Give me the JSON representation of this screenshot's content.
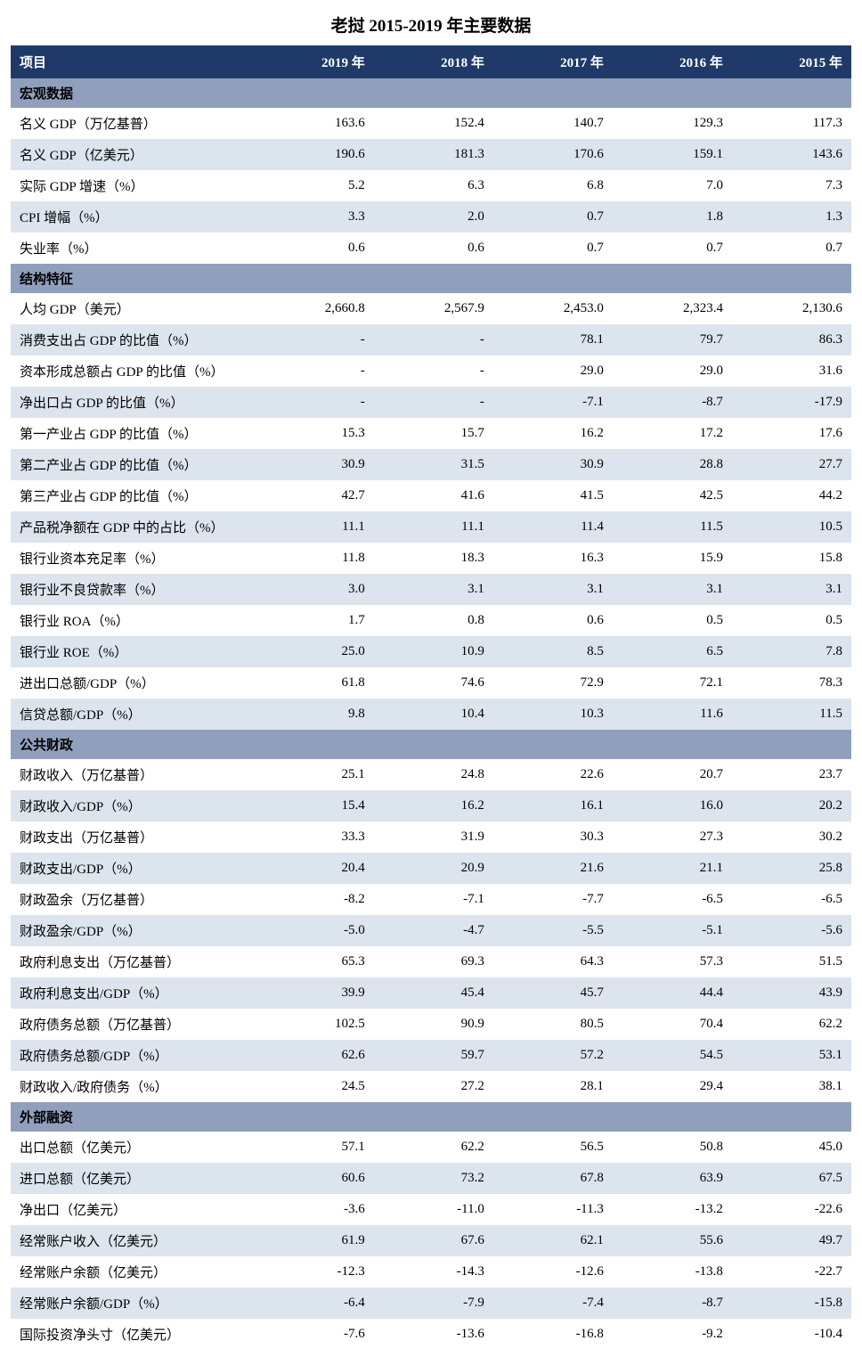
{
  "title": "老挝 2015-2019 年主要数据",
  "colors": {
    "header_bg": "#1f3a68",
    "header_fg": "#ffffff",
    "section_bg": "#909fbc",
    "row_even_bg": "#ffffff",
    "row_odd_bg": "#dce4ed",
    "text": "#000000"
  },
  "columns": [
    "项目",
    "2019 年",
    "2018 年",
    "2017 年",
    "2016 年",
    "2015 年"
  ],
  "sections": [
    {
      "name": "宏观数据",
      "rows": [
        {
          "label": "名义 GDP（万亿基普）",
          "v": [
            "163.6",
            "152.4",
            "140.7",
            "129.3",
            "117.3"
          ]
        },
        {
          "label": "名义 GDP（亿美元）",
          "v": [
            "190.6",
            "181.3",
            "170.6",
            "159.1",
            "143.6"
          ]
        },
        {
          "label": "实际 GDP 增速（%）",
          "v": [
            "5.2",
            "6.3",
            "6.8",
            "7.0",
            "7.3"
          ]
        },
        {
          "label": "CPI 增幅（%）",
          "v": [
            "3.3",
            "2.0",
            "0.7",
            "1.8",
            "1.3"
          ]
        },
        {
          "label": "失业率（%）",
          "v": [
            "0.6",
            "0.6",
            "0.7",
            "0.7",
            "0.7"
          ]
        }
      ]
    },
    {
      "name": "结构特征",
      "rows": [
        {
          "label": "人均 GDP（美元）",
          "v": [
            "2,660.8",
            "2,567.9",
            "2,453.0",
            "2,323.4",
            "2,130.6"
          ]
        },
        {
          "label": "消费支出占 GDP 的比值（%）",
          "v": [
            "-",
            "-",
            "78.1",
            "79.7",
            "86.3"
          ]
        },
        {
          "label": "资本形成总额占 GDP 的比值（%）",
          "v": [
            "-",
            "-",
            "29.0",
            "29.0",
            "31.6"
          ]
        },
        {
          "label": "净出口占 GDP 的比值（%）",
          "v": [
            "-",
            "-",
            "-7.1",
            "-8.7",
            "-17.9"
          ]
        },
        {
          "label": "第一产业占 GDP 的比值（%）",
          "v": [
            "15.3",
            "15.7",
            "16.2",
            "17.2",
            "17.6"
          ]
        },
        {
          "label": "第二产业占 GDP 的比值（%）",
          "v": [
            "30.9",
            "31.5",
            "30.9",
            "28.8",
            "27.7"
          ]
        },
        {
          "label": "第三产业占 GDP 的比值（%）",
          "v": [
            "42.7",
            "41.6",
            "41.5",
            "42.5",
            "44.2"
          ]
        },
        {
          "label": "产品税净额在 GDP 中的占比（%）",
          "v": [
            "11.1",
            "11.1",
            "11.4",
            "11.5",
            "10.5"
          ]
        },
        {
          "label": "银行业资本充足率（%）",
          "v": [
            "11.8",
            "18.3",
            "16.3",
            "15.9",
            "15.8"
          ]
        },
        {
          "label": "银行业不良贷款率（%）",
          "v": [
            "3.0",
            "3.1",
            "3.1",
            "3.1",
            "3.1"
          ]
        },
        {
          "label": "银行业 ROA（%）",
          "v": [
            "1.7",
            "0.8",
            "0.6",
            "0.5",
            "0.5"
          ]
        },
        {
          "label": "银行业 ROE（%）",
          "v": [
            "25.0",
            "10.9",
            "8.5",
            "6.5",
            "7.8"
          ]
        },
        {
          "label": "进出口总额/GDP（%）",
          "v": [
            "61.8",
            "74.6",
            "72.9",
            "72.1",
            "78.3"
          ]
        },
        {
          "label": "信贷总额/GDP（%）",
          "v": [
            "9.8",
            "10.4",
            "10.3",
            "11.6",
            "11.5"
          ]
        }
      ]
    },
    {
      "name": "公共财政",
      "rows": [
        {
          "label": "财政收入（万亿基普）",
          "v": [
            "25.1",
            "24.8",
            "22.6",
            "20.7",
            "23.7"
          ]
        },
        {
          "label": "财政收入/GDP（%）",
          "v": [
            "15.4",
            "16.2",
            "16.1",
            "16.0",
            "20.2"
          ]
        },
        {
          "label": "财政支出（万亿基普）",
          "v": [
            "33.3",
            "31.9",
            "30.3",
            "27.3",
            "30.2"
          ]
        },
        {
          "label": "财政支出/GDP（%）",
          "v": [
            "20.4",
            "20.9",
            "21.6",
            "21.1",
            "25.8"
          ]
        },
        {
          "label": "财政盈余（万亿基普）",
          "v": [
            "-8.2",
            "-7.1",
            "-7.7",
            "-6.5",
            "-6.5"
          ]
        },
        {
          "label": "财政盈余/GDP（%）",
          "v": [
            "-5.0",
            "-4.7",
            "-5.5",
            "-5.1",
            "-5.6"
          ]
        },
        {
          "label": "政府利息支出（万亿基普）",
          "v": [
            "65.3",
            "69.3",
            "64.3",
            "57.3",
            "51.5"
          ]
        },
        {
          "label": "政府利息支出/GDP（%）",
          "v": [
            "39.9",
            "45.4",
            "45.7",
            "44.4",
            "43.9"
          ]
        },
        {
          "label": "政府债务总额（万亿基普）",
          "v": [
            "102.5",
            "90.9",
            "80.5",
            "70.4",
            "62.2"
          ]
        },
        {
          "label": "政府债务总额/GDP（%）",
          "v": [
            "62.6",
            "59.7",
            "57.2",
            "54.5",
            "53.1"
          ]
        },
        {
          "label": "财政收入/政府债务（%）",
          "v": [
            "24.5",
            "27.2",
            "28.1",
            "29.4",
            "38.1"
          ]
        }
      ]
    },
    {
      "name": "外部融资",
      "rows": [
        {
          "label": "出口总额（亿美元）",
          "v": [
            "57.1",
            "62.2",
            "56.5",
            "50.8",
            "45.0"
          ]
        },
        {
          "label": "进口总额（亿美元）",
          "v": [
            "60.6",
            "73.2",
            "67.8",
            "63.9",
            "67.5"
          ]
        },
        {
          "label": "净出口（亿美元）",
          "v": [
            "-3.6",
            "-11.0",
            "-11.3",
            "-13.2",
            "-22.6"
          ]
        },
        {
          "label": "经常账户收入（亿美元）",
          "v": [
            "61.9",
            "67.6",
            "62.1",
            "55.6",
            "49.7"
          ]
        },
        {
          "label": "经常账户余额（亿美元）",
          "v": [
            "-12.3",
            "-14.3",
            "-12.6",
            "-13.8",
            "-22.7"
          ]
        },
        {
          "label": "经常账户余额/GDP（%）",
          "v": [
            "-6.4",
            "-7.9",
            "-7.4",
            "-8.7",
            "-15.8"
          ]
        },
        {
          "label": "国际投资净头寸（亿美元）",
          "v": [
            "-7.6",
            "-13.6",
            "-16.8",
            "-9.2",
            "-10.4"
          ]
        }
      ]
    }
  ]
}
